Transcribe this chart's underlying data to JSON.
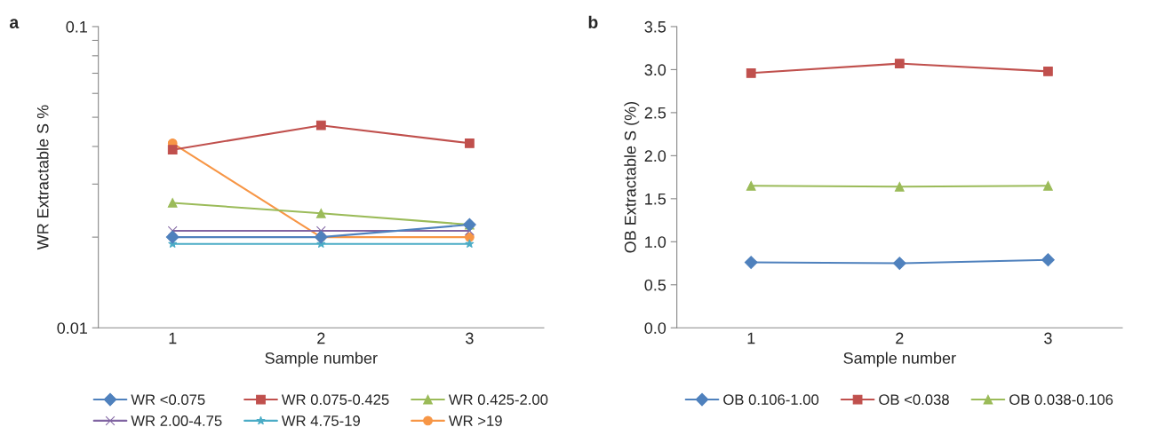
{
  "chart_data": [
    {
      "type": "line",
      "title": "a",
      "xlabel": "Sample number",
      "ylabel": "WR Extractable S %",
      "categories": [
        "1",
        "2",
        "3"
      ],
      "log": "y",
      "ylim": [
        0.01,
        0.1
      ],
      "yticks": [
        0.01,
        {
          "value": 0.02,
          "label": null
        },
        {
          "value": 0.03,
          "label": null
        },
        {
          "value": 0.04,
          "label": null
        },
        {
          "value": 0.05,
          "label": null
        },
        {
          "value": 0.06,
          "label": null
        },
        {
          "value": 0.07,
          "label": null
        },
        {
          "value": 0.08,
          "label": null
        },
        {
          "value": 0.09,
          "label": null
        },
        0.1
      ],
      "grid": false,
      "legend": "bottom",
      "series": [
        {
          "name": "WR <0.075",
          "color": "#4f81bd",
          "marker": "diamond",
          "values": [
            0.02,
            0.02,
            0.022
          ]
        },
        {
          "name": "WR 0.075-0.425",
          "color": "#c0504d",
          "marker": "square",
          "values": [
            0.039,
            0.047,
            0.041
          ]
        },
        {
          "name": "WR 0.425-2.00",
          "color": "#9bbb59",
          "marker": "triangle",
          "values": [
            0.026,
            0.024,
            0.022
          ]
        },
        {
          "name": "WR 2.00-4.75",
          "color": "#8064a2",
          "marker": "cross",
          "values": [
            0.021,
            0.021,
            0.021
          ]
        },
        {
          "name": "WR 4.75-19",
          "color": "#4bacc6",
          "marker": "star",
          "values": [
            0.019,
            0.019,
            0.019
          ]
        },
        {
          "name": "WR >19",
          "color": "#f79646",
          "marker": "circle",
          "values": [
            0.041,
            0.02,
            0.02
          ]
        }
      ]
    },
    {
      "type": "line",
      "title": "b",
      "xlabel": "Sample number",
      "ylabel": "OB Extractable S (%)",
      "categories": [
        "1",
        "2",
        "3"
      ],
      "ylim": [
        0,
        3.5
      ],
      "yticks": [
        {
          "value": 0,
          "label": "0.0"
        },
        0.5,
        {
          "value": 1,
          "label": "1.0"
        },
        1.5,
        {
          "value": 2,
          "label": "2.0"
        },
        2.5,
        {
          "value": 3,
          "label": "3.0"
        },
        3.5
      ],
      "grid": false,
      "legend": "bottom",
      "series": [
        {
          "name": "OB 0.106-1.00",
          "color": "#4f81bd",
          "marker": "diamond",
          "values": [
            0.76,
            0.75,
            0.79
          ]
        },
        {
          "name": "OB <0.038",
          "color": "#c0504d",
          "marker": "square",
          "values": [
            2.96,
            3.07,
            2.98
          ]
        },
        {
          "name": "OB 0.038-0.106",
          "color": "#9bbb59",
          "marker": "triangle",
          "values": [
            1.65,
            1.64,
            1.65
          ]
        }
      ]
    }
  ]
}
